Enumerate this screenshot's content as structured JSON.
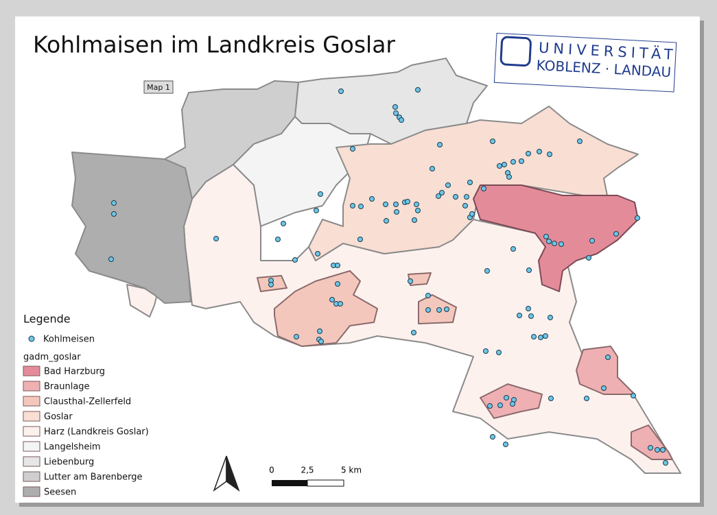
{
  "header": {
    "title": "Kohlmaisen im Landkreis Goslar",
    "map_label": "Map 1"
  },
  "logo": {
    "line1": "UNIVERSITÄT",
    "line2": "KOBLENZ · LANDAU"
  },
  "legend": {
    "title": "Legende",
    "points": "Kohlmeisen",
    "layer": "gadm_goslar",
    "items": [
      {
        "name": "Bad Harzburg",
        "color": "#e48b99"
      },
      {
        "name": "Braunlage",
        "color": "#eeb0b3"
      },
      {
        "name": "Clausthal-Zellerfeld",
        "color": "#f4c7bd"
      },
      {
        "name": "Goslar",
        "color": "#f9ded3"
      },
      {
        "name": "Harz (Landkreis Goslar)",
        "color": "#fdf1ee"
      },
      {
        "name": "Langelsheim",
        "color": "#f4f4f4"
      },
      {
        "name": "Liebenburg",
        "color": "#e6e6e6"
      },
      {
        "name": "Lutter am Barenberge",
        "color": "#cfcfcf"
      },
      {
        "name": "Seesen",
        "color": "#aeaeae"
      }
    ]
  },
  "scale_bar": {
    "labels": [
      "0",
      "2,5",
      "5 km"
    ]
  }
}
